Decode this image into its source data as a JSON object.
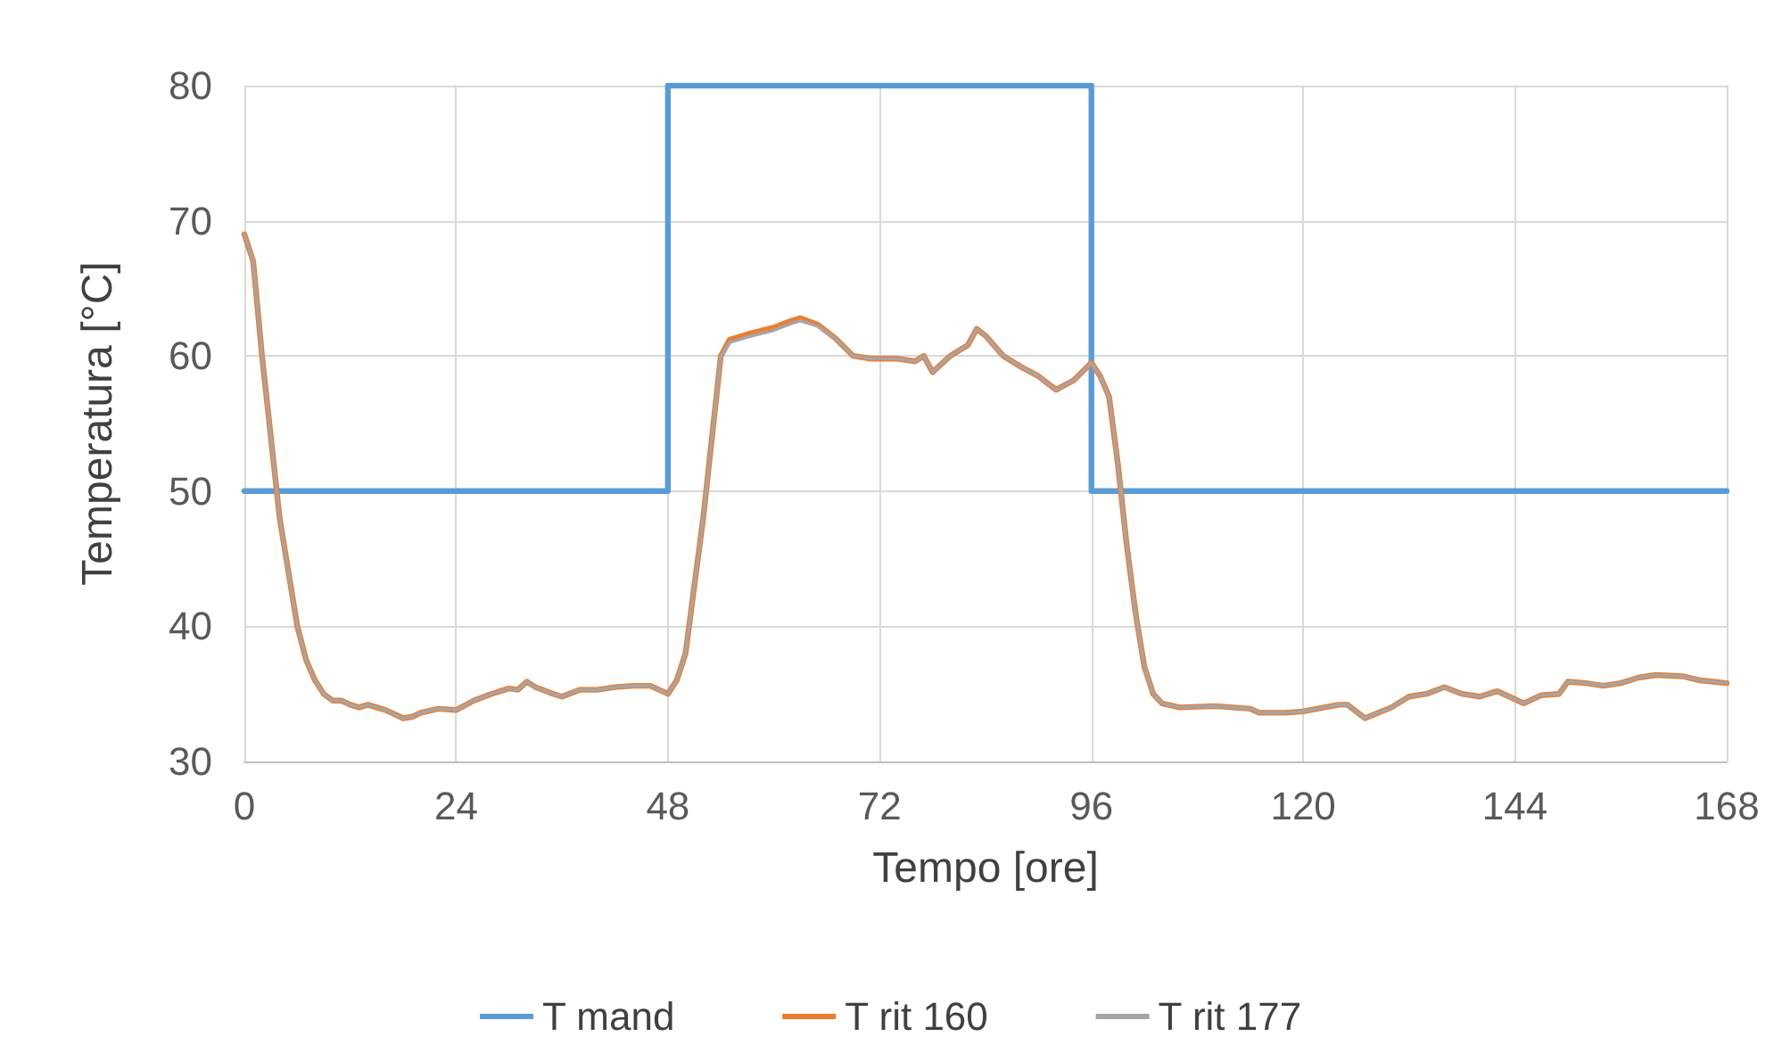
{
  "chart_data": {
    "type": "line",
    "xlabel": "Tempo [ore]",
    "ylabel": "Temperatura [°C]",
    "xlim": [
      0,
      168
    ],
    "xticks": [
      0,
      24,
      48,
      72,
      96,
      120,
      144,
      168
    ],
    "ylim": [
      30,
      80
    ],
    "yticks": [
      30,
      40,
      50,
      60,
      70,
      80
    ],
    "grid": true,
    "legend": "bottom",
    "marker": "none",
    "line_style": "solid",
    "series": [
      {
        "name": "T mand",
        "type": "step",
        "color": "#5b9bd5",
        "x": [
          0,
          48,
          96,
          168
        ],
        "values": [
          50,
          80,
          50,
          50
        ]
      },
      {
        "name": "T rit 160",
        "color": "#ed7d31",
        "x": [
          0,
          1,
          2,
          3,
          4,
          5,
          6,
          7,
          8,
          9,
          10,
          11,
          12,
          13,
          14,
          15,
          16,
          17,
          18,
          19,
          20,
          22,
          24,
          26,
          28,
          30,
          31,
          32,
          33,
          35,
          36,
          38,
          40,
          42,
          44,
          46,
          48,
          49,
          50,
          51,
          52,
          53,
          54,
          55,
          57,
          60,
          62,
          63,
          65,
          67,
          69,
          71,
          74,
          76,
          77,
          78,
          80,
          82,
          83,
          84,
          86,
          88,
          90,
          92,
          94,
          96,
          97,
          98,
          99,
          100,
          101,
          102,
          103,
          104,
          106,
          110,
          114,
          115,
          118,
          120,
          124,
          125,
          127,
          130,
          132,
          134,
          136,
          138,
          140,
          142,
          144,
          145,
          147,
          149,
          150,
          152,
          154,
          156,
          158,
          160,
          163,
          165,
          168
        ],
        "values": [
          69,
          67,
          60,
          54,
          48,
          44,
          40,
          37.5,
          36,
          35,
          34.5,
          34.5,
          34.2,
          34,
          34.2,
          34,
          33.8,
          33.5,
          33.2,
          33.3,
          33.6,
          33.9,
          33.8,
          34.5,
          35,
          35.4,
          35.3,
          35.9,
          35.5,
          35,
          34.8,
          35.3,
          35.3,
          35.5,
          35.6,
          35.6,
          35,
          36,
          38,
          43,
          48,
          54,
          60,
          61.2,
          61.6,
          62.1,
          62.6,
          62.8,
          62.3,
          61.3,
          60,
          59.8,
          59.8,
          59.6,
          60,
          58.8,
          60,
          60.8,
          62,
          61.5,
          60,
          59.2,
          58.5,
          57.5,
          58.2,
          59.5,
          58.5,
          57,
          52,
          46,
          41,
          37,
          35,
          34.3,
          34,
          34.1,
          33.9,
          33.6,
          33.6,
          33.7,
          34.2,
          34.2,
          33.2,
          34,
          34.8,
          35,
          35.5,
          35,
          34.8,
          35.2,
          34.6,
          34.3,
          34.9,
          35,
          35.9,
          35.8,
          35.6,
          35.8,
          36.2,
          36.4,
          36.3,
          36,
          35.8
        ]
      },
      {
        "name": "T rit 177",
        "color": "#a5a5a5",
        "x": [
          0,
          1,
          2,
          3,
          4,
          5,
          6,
          7,
          8,
          9,
          10,
          11,
          12,
          13,
          14,
          15,
          16,
          17,
          18,
          19,
          20,
          22,
          24,
          26,
          28,
          30,
          31,
          32,
          33,
          35,
          36,
          38,
          40,
          42,
          44,
          46,
          48,
          49,
          50,
          51,
          52,
          53,
          54,
          55,
          57,
          60,
          62,
          63,
          65,
          67,
          69,
          71,
          74,
          76,
          77,
          78,
          80,
          82,
          83,
          84,
          86,
          88,
          90,
          92,
          94,
          96,
          97,
          98,
          99,
          100,
          101,
          102,
          103,
          104,
          106,
          110,
          114,
          115,
          118,
          120,
          124,
          125,
          127,
          130,
          132,
          134,
          136,
          138,
          140,
          142,
          144,
          145,
          147,
          149,
          150,
          152,
          154,
          156,
          158,
          160,
          163,
          165,
          168
        ],
        "values": [
          69,
          67,
          60,
          54,
          48,
          44,
          40,
          37.5,
          36,
          35,
          34.5,
          34.5,
          34.2,
          34,
          34.2,
          34,
          33.8,
          33.5,
          33.2,
          33.3,
          33.6,
          33.9,
          33.8,
          34.5,
          35,
          35.4,
          35.3,
          35.9,
          35.5,
          35,
          34.8,
          35.3,
          35.3,
          35.5,
          35.6,
          35.6,
          35,
          36,
          38,
          43,
          48,
          54,
          60,
          61,
          61.4,
          61.9,
          62.4,
          62.6,
          62.2,
          61.3,
          60,
          59.8,
          59.8,
          59.6,
          60,
          58.8,
          60,
          60.8,
          62,
          61.5,
          60,
          59.2,
          58.5,
          57.5,
          58.2,
          59.5,
          58.5,
          57,
          52,
          46,
          41,
          37,
          35,
          34.3,
          34,
          34.1,
          33.9,
          33.6,
          33.6,
          33.7,
          34.2,
          34.2,
          33.2,
          34,
          34.8,
          35,
          35.5,
          35,
          34.8,
          35.2,
          34.6,
          34.3,
          34.9,
          35,
          35.9,
          35.8,
          35.6,
          35.8,
          36.2,
          36.4,
          36.3,
          36,
          35.8
        ]
      }
    ]
  }
}
